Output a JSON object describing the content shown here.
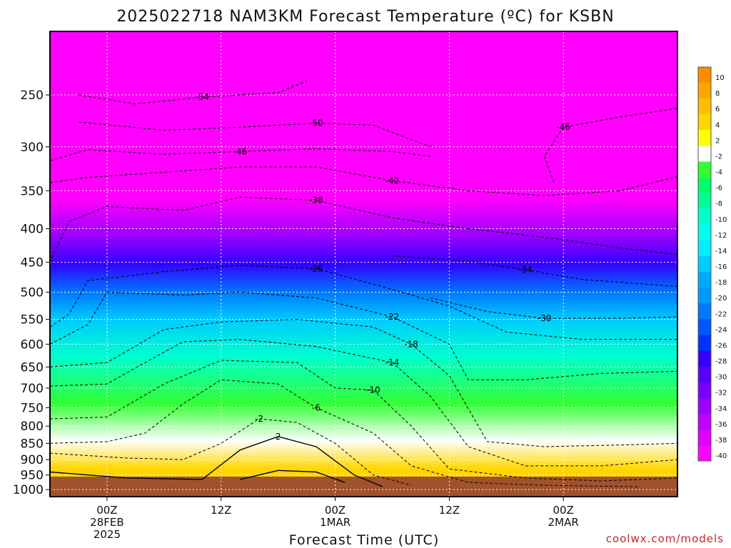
{
  "chart_data": {
    "type": "heatmap",
    "title": "2025022718 NAM3KM Forecast Temperature (ºC) for KSBN",
    "xlabel": "Forecast Time (UTC)",
    "ylabel": "",
    "credit": "coolwx.com/models",
    "y_scale": "log",
    "ylim": [
      1025,
      200
    ],
    "y_ticks": [
      250,
      300,
      350,
      400,
      450,
      500,
      550,
      600,
      650,
      700,
      750,
      800,
      850,
      900,
      950,
      1000
    ],
    "y_tick_labels": [
      "250",
      "300",
      "350",
      "400",
      "450",
      "500",
      "550",
      "600",
      "650",
      "700",
      "750",
      "800",
      "850",
      "900",
      "950",
      "1000"
    ],
    "xlim": [
      "2025-02-27T18:00Z",
      "2025-03-02T12:00Z"
    ],
    "x_ticks": [
      {
        "time": "2025-02-28T00:00Z",
        "lines": [
          "00Z",
          "28FEB",
          "2025"
        ]
      },
      {
        "time": "2025-02-28T12:00Z",
        "lines": [
          "12Z"
        ]
      },
      {
        "time": "2025-03-01T00:00Z",
        "lines": [
          "00Z",
          "1MAR"
        ]
      },
      {
        "time": "2025-03-01T12:00Z",
        "lines": [
          "12Z"
        ]
      },
      {
        "time": "2025-03-02T00:00Z",
        "lines": [
          "00Z",
          "2MAR"
        ]
      }
    ],
    "grid": true,
    "legend": "colorbar-right",
    "colorbar": {
      "ticks": [
        10,
        8,
        6,
        4,
        2,
        -2,
        -4,
        -6,
        -8,
        -10,
        -12,
        -14,
        -16,
        -18,
        -20,
        -22,
        -24,
        -26,
        -28,
        -30,
        -32,
        -34,
        -36,
        -38,
        -40
      ],
      "tick_labels": [
        "10",
        "8",
        "6",
        "4",
        "2",
        "-2",
        "-4",
        "-6",
        "-8",
        "-10",
        "-12",
        "-14",
        "-16",
        "-18",
        "-20",
        "-22",
        "-24",
        "-26",
        "-28",
        "-30",
        "-32",
        "-34",
        "-36",
        "-38",
        "-40"
      ],
      "colors": [
        "#ff8c00",
        "#ffa500",
        "#ffbf00",
        "#ffd700",
        "#ffff00",
        "#ffffff",
        "#33ff33",
        "#00ff66",
        "#00ff99",
        "#00ffcc",
        "#00ffee",
        "#00eeff",
        "#00ccff",
        "#00aaff",
        "#0099ff",
        "#0077ff",
        "#0055ff",
        "#0033ff",
        "#3300ff",
        "#5500ff",
        "#7700ff",
        "#9900ff",
        "#bb00ff",
        "#dd00ff",
        "#ff00ff"
      ]
    },
    "contours": [
      {
        "value": -54,
        "label": "-54",
        "points": [
          [
            "2025-02-27T21:00Z",
            250
          ],
          [
            "2025-02-28T03:00Z",
            258
          ],
          [
            "2025-02-28T10:00Z",
            252
          ],
          [
            "2025-02-28T18:00Z",
            248
          ],
          [
            "2025-02-28T21:00Z",
            238
          ]
        ]
      },
      {
        "value": -50,
        "label": "-50",
        "points": [
          [
            "2025-02-27T21:00Z",
            275
          ],
          [
            "2025-02-28T06:00Z",
            283
          ],
          [
            "2025-02-28T14:00Z",
            280
          ],
          [
            "2025-02-28T22:00Z",
            276
          ],
          [
            "2025-03-01T04:00Z",
            278
          ],
          [
            "2025-03-01T10:00Z",
            300
          ]
        ]
      },
      {
        "value": -46,
        "label": "-46",
        "points": [
          [
            "2025-02-27T18:00Z",
            315
          ],
          [
            "2025-02-27T22:00Z",
            303
          ],
          [
            "2025-02-28T06:00Z",
            308
          ],
          [
            "2025-02-28T14:00Z",
            305
          ],
          [
            "2025-02-28T22:00Z",
            302
          ],
          [
            "2025-03-01T06:00Z",
            305
          ],
          [
            "2025-03-01T10:00Z",
            310
          ]
        ]
      },
      {
        "value": -46,
        "label": "-46",
        "points": [
          [
            "2025-03-01T23:00Z",
            340
          ],
          [
            "2025-03-01T22:00Z",
            310
          ],
          [
            "2025-03-02T00:00Z",
            280
          ],
          [
            "2025-03-02T06:00Z",
            270
          ],
          [
            "2025-03-02T12:00Z",
            262
          ]
        ]
      },
      {
        "value": -42,
        "label": "-42",
        "points": [
          [
            "2025-02-27T18:00Z",
            340
          ],
          [
            "2025-02-27T22:00Z",
            334
          ],
          [
            "2025-02-28T06:00Z",
            328
          ],
          [
            "2025-02-28T14:00Z",
            322
          ],
          [
            "2025-02-28T22:00Z",
            322
          ],
          [
            "2025-03-01T06:00Z",
            338
          ],
          [
            "2025-03-01T14:00Z",
            350
          ],
          [
            "2025-03-01T22:00Z",
            356
          ],
          [
            "2025-03-02T06:00Z",
            350
          ],
          [
            "2025-03-02T12:00Z",
            333
          ]
        ]
      },
      {
        "value": -38,
        "label": "-38",
        "points": [
          [
            "2025-02-27T18:00Z",
            450
          ],
          [
            "2025-02-27T20:00Z",
            390
          ],
          [
            "2025-02-28T00:00Z",
            370
          ],
          [
            "2025-02-28T08:00Z",
            375
          ],
          [
            "2025-02-28T14:00Z",
            358
          ],
          [
            "2025-02-28T22:00Z",
            362
          ],
          [
            "2025-03-01T06:00Z",
            385
          ],
          [
            "2025-03-01T14:00Z",
            400
          ],
          [
            "2025-03-01T22:00Z",
            412
          ],
          [
            "2025-03-02T06:00Z",
            428
          ],
          [
            "2025-03-02T12:00Z",
            438
          ]
        ]
      },
      {
        "value": -34,
        "label": "-34",
        "points": [
          [
            "2025-03-01T06:00Z",
            440
          ],
          [
            "2025-03-01T14:00Z",
            448
          ],
          [
            "2025-03-01T20:00Z",
            462
          ],
          [
            "2025-03-02T02:00Z",
            478
          ],
          [
            "2025-03-02T12:00Z",
            490
          ]
        ]
      },
      {
        "value": -30,
        "label": "-30",
        "points": [
          [
            "2025-03-01T10:00Z",
            510
          ],
          [
            "2025-03-01T16:00Z",
            535
          ],
          [
            "2025-03-01T22:00Z",
            548
          ],
          [
            "2025-03-02T06:00Z",
            548
          ],
          [
            "2025-03-02T12:00Z",
            545
          ]
        ]
      },
      {
        "value": -26,
        "label": "-26",
        "points": [
          [
            "2025-02-27T18:00Z",
            565
          ],
          [
            "2025-02-27T20:00Z",
            540
          ],
          [
            "2025-02-27T22:00Z",
            480
          ],
          [
            "2025-02-28T06:00Z",
            465
          ],
          [
            "2025-02-28T14:00Z",
            455
          ],
          [
            "2025-02-28T22:00Z",
            460
          ],
          [
            "2025-03-01T06:00Z",
            495
          ],
          [
            "2025-03-01T12:00Z",
            525
          ],
          [
            "2025-03-01T18:00Z",
            575
          ],
          [
            "2025-03-02T02:00Z",
            590
          ],
          [
            "2025-03-02T12:00Z",
            590
          ]
        ]
      },
      {
        "value": -22,
        "label": "-22",
        "points": [
          [
            "2025-02-27T18:00Z",
            600
          ],
          [
            "2025-02-27T22:00Z",
            560
          ],
          [
            "2025-02-28T00:00Z",
            500
          ],
          [
            "2025-02-28T08:00Z",
            505
          ],
          [
            "2025-02-28T14:00Z",
            500
          ],
          [
            "2025-02-28T22:00Z",
            510
          ],
          [
            "2025-03-01T06:00Z",
            545
          ],
          [
            "2025-03-01T12:00Z",
            600
          ],
          [
            "2025-03-01T14:00Z",
            680
          ],
          [
            "2025-03-01T20:00Z",
            680
          ],
          [
            "2025-03-02T04:00Z",
            665
          ],
          [
            "2025-03-02T12:00Z",
            660
          ]
        ]
      },
      {
        "value": -18,
        "label": "-18",
        "points": [
          [
            "2025-02-27T18:00Z",
            650
          ],
          [
            "2025-02-28T00:00Z",
            640
          ],
          [
            "2025-02-28T06:00Z",
            570
          ],
          [
            "2025-02-28T12:00Z",
            555
          ],
          [
            "2025-02-28T20:00Z",
            550
          ],
          [
            "2025-03-01T04:00Z",
            565
          ],
          [
            "2025-03-01T08:00Z",
            600
          ],
          [
            "2025-03-01T12:00Z",
            670
          ],
          [
            "2025-03-01T16:00Z",
            845
          ],
          [
            "2025-03-01T22:00Z",
            860
          ],
          [
            "2025-03-02T06:00Z",
            855
          ],
          [
            "2025-03-02T12:00Z",
            850
          ]
        ]
      },
      {
        "value": -14,
        "label": "-14",
        "points": [
          [
            "2025-02-27T18:00Z",
            695
          ],
          [
            "2025-02-28T00:00Z",
            690
          ],
          [
            "2025-02-28T04:00Z",
            640
          ],
          [
            "2025-02-28T08:00Z",
            595
          ],
          [
            "2025-02-28T14:00Z",
            590
          ],
          [
            "2025-02-28T22:00Z",
            605
          ],
          [
            "2025-03-01T06:00Z",
            640
          ],
          [
            "2025-03-01T10:00Z",
            720
          ],
          [
            "2025-03-01T14:00Z",
            860
          ],
          [
            "2025-03-01T20:00Z",
            920
          ],
          [
            "2025-03-02T04:00Z",
            920
          ],
          [
            "2025-03-02T12:00Z",
            900
          ]
        ]
      },
      {
        "value": -10,
        "label": "-10",
        "points": [
          [
            "2025-02-27T18:00Z",
            780
          ],
          [
            "2025-02-28T00:00Z",
            775
          ],
          [
            "2025-02-28T06:00Z",
            690
          ],
          [
            "2025-02-28T12:00Z",
            635
          ],
          [
            "2025-02-28T20:00Z",
            640
          ],
          [
            "2025-03-01T00:00Z",
            700
          ],
          [
            "2025-03-01T04:00Z",
            705
          ],
          [
            "2025-03-01T08:00Z",
            800
          ],
          [
            "2025-03-01T12:00Z",
            930
          ],
          [
            "2025-03-01T20:00Z",
            960
          ],
          [
            "2025-03-02T04:00Z",
            970
          ],
          [
            "2025-03-02T12:00Z",
            960
          ]
        ]
      },
      {
        "value": -6,
        "label": "-6",
        "points": [
          [
            "2025-02-27T18:00Z",
            850
          ],
          [
            "2025-02-28T00:00Z",
            845
          ],
          [
            "2025-02-28T04:00Z",
            820
          ],
          [
            "2025-02-28T08:00Z",
            740
          ],
          [
            "2025-02-28T12:00Z",
            680
          ],
          [
            "2025-02-28T18:00Z",
            690
          ],
          [
            "2025-02-28T22:00Z",
            750
          ],
          [
            "2025-03-01T04:00Z",
            820
          ],
          [
            "2025-03-01T08:00Z",
            920
          ],
          [
            "2025-03-01T14:00Z",
            975
          ],
          [
            "2025-03-01T22:00Z",
            985
          ],
          [
            "2025-03-02T08:00Z",
            990
          ]
        ]
      },
      {
        "value": -2,
        "label": "-2",
        "points": [
          [
            "2025-02-27T18:00Z",
            880
          ],
          [
            "2025-02-28T02:00Z",
            895
          ],
          [
            "2025-02-28T08:00Z",
            900
          ],
          [
            "2025-02-28T12:00Z",
            850
          ],
          [
            "2025-02-28T16:00Z",
            780
          ],
          [
            "2025-02-28T20:00Z",
            790
          ],
          [
            "2025-03-01T00:00Z",
            850
          ],
          [
            "2025-03-01T04:00Z",
            950
          ],
          [
            "2025-03-01T08:00Z",
            985
          ]
        ]
      },
      {
        "value": 2,
        "label": "2",
        "points": [
          [
            "2025-02-27T18:00Z",
            940
          ],
          [
            "2025-02-28T02:00Z",
            960
          ],
          [
            "2025-02-28T10:00Z",
            965
          ],
          [
            "2025-02-28T14:00Z",
            870
          ],
          [
            "2025-02-28T18:00Z",
            830
          ],
          [
            "2025-02-28T22:00Z",
            860
          ],
          [
            "2025-03-01T02:00Z",
            950
          ],
          [
            "2025-03-01T05:00Z",
            990
          ]
        ]
      },
      {
        "value": 6,
        "label": "",
        "points": [
          [
            "2025-02-28T14:00Z",
            965
          ],
          [
            "2025-02-28T18:00Z",
            935
          ],
          [
            "2025-02-28T22:00Z",
            940
          ],
          [
            "2025-03-01T01:00Z",
            975
          ]
        ]
      }
    ]
  }
}
